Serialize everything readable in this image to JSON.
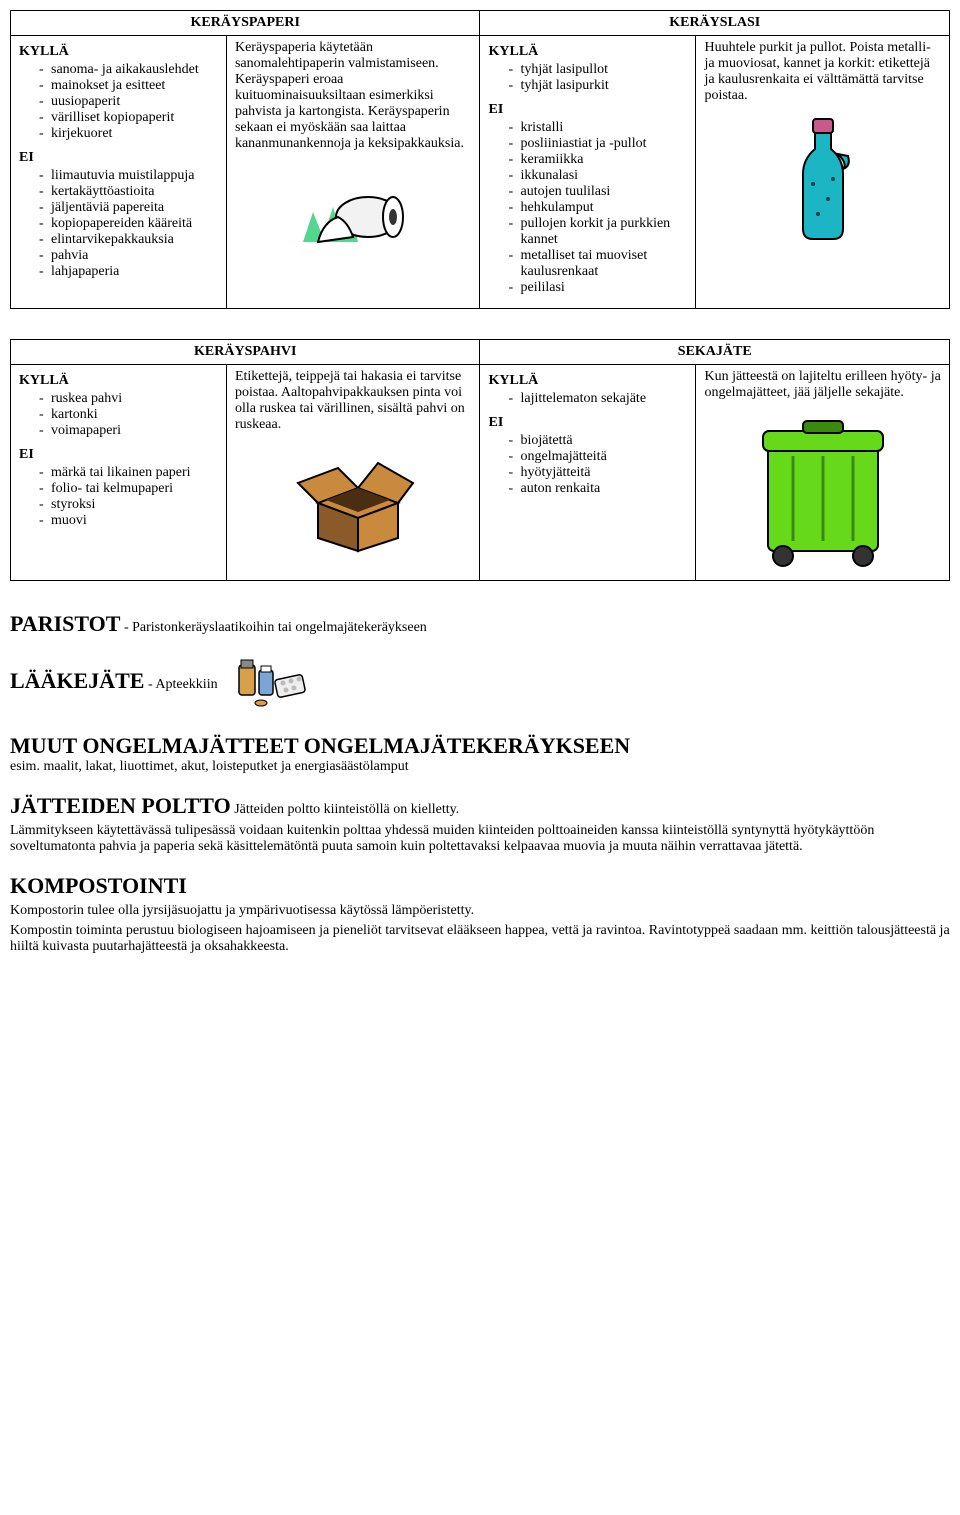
{
  "table1": {
    "h1": "KERÄYSPAPERI",
    "h2": "KERÄYSLASI",
    "paper": {
      "yes_label": "KYLLÄ",
      "yes": [
        "sanoma- ja aikakauslehdet",
        "mainokset ja esitteet",
        "uusiopaperit",
        "värilliset kopiopaperit",
        "kirjekuoret"
      ],
      "no_label": "EI",
      "no": [
        "liimautuvia muistilappuja",
        "kertakäyttöastioita",
        "jäljentäviä papereita",
        "kopiopapereiden kääreitä",
        "elintarvikepakkauksia",
        "pahvia",
        "lahjapaperia"
      ],
      "desc": "Keräyspaperia käytetään sanomalehtipaperin valmistamiseen. Keräyspaperi eroaa kuituominaisuuksiltaan esimerkiksi pahvista ja kartongista. Keräyspaperin sekaan ei myöskään saa laittaa kananmunankennoja ja keksipakkauksia."
    },
    "glass": {
      "yes_label": "KYLLÄ",
      "yes": [
        "tyhjät lasipullot",
        "tyhjät lasipurkit"
      ],
      "no_label": "EI",
      "no": [
        "kristalli",
        "posliiniastiat ja -pullot",
        "keramiikka",
        "ikkunalasi",
        "autojen tuulilasi",
        "hehkulamput",
        "pullojen korkit ja purkkien kannet",
        "metalliset tai muoviset kaulusrenkaat",
        "peililasi"
      ],
      "desc": "Huuhtele purkit ja pullot. Poista metalli- ja muoviosat, kannet ja korkit: etikettejä ja kaulusrenkaita ei välttämättä tarvitse poistaa."
    }
  },
  "table2": {
    "h1": "KERÄYSPAHVI",
    "h2": "SEKAJÄTE",
    "card": {
      "yes_label": "KYLLÄ",
      "yes": [
        "ruskea pahvi",
        "kartonki",
        "voimapaperi"
      ],
      "no_label": "EI",
      "no": [
        "märkä tai likainen paperi",
        "folio- tai kelmupaperi",
        "styroksi",
        "muovi"
      ],
      "desc": "Etikettejä, teippejä tai hakasia ei tarvitse poistaa. Aaltopahvipakkauksen pinta voi olla ruskea tai värillinen, sisältä pahvi on ruskeaa."
    },
    "mixed": {
      "yes_label": "KYLLÄ",
      "yes": [
        "lajittelematon sekajäte"
      ],
      "no_label": "EI",
      "no": [
        "biojätettä",
        "ongelmajätteitä",
        "hyötyjätteitä",
        "auton renkaita"
      ],
      "desc": "Kun jätteestä on lajiteltu erilleen hyöty- ja ongelmajätteet, jää jäljelle sekajäte."
    }
  },
  "sections": {
    "paristot_t": "PARISTOT",
    "paristot_s": " - Paristonkeräyslaatikoihin tai ongelmajätekeräykseen",
    "laake_t": "LÄÄKEJÄTE",
    "laake_s": " - Apteekkiin",
    "muut_t": "MUUT ONGELMAJÄTTEET ONGELMAJÄTEKERÄYKSEEN",
    "muut_s": " esim. maalit, lakat, liuottimet, akut, loisteputket ja energiasäästölamput",
    "poltto_t": "JÄTTEIDEN POLTTO",
    "poltto_s": " Jätteiden poltto kiinteistöllä on kielletty.",
    "poltto_p": "Lämmitykseen käytettävässä tulipesässä voidaan kuitenkin polttaa yhdessä muiden kiinteiden polttoaineiden kanssa kiinteistöllä syntynyttä hyötykäyttöön soveltumatonta pahvia ja paperia sekä käsittelemätöntä puuta samoin kuin poltettavaksi kelpaavaa muovia ja muuta näihin verrattavaa jätettä.",
    "komp_t": "KOMPOSTOINTI",
    "komp_p1": "Kompostorin tulee olla jyrsijäsuojattu ja ympärivuotisessa käytössä lämpöeristetty.",
    "komp_p2": "Kompostin toiminta perustuu biologiseen hajoamiseen ja pieneliöt tarvitsevat elääkseen happea, vettä ja ravintoa. Ravintotyppeä saadaan mm. keittiön talousjätteestä ja hiiltä kuivasta puutarhajätteestä ja oksahakkeesta."
  },
  "icons": {
    "paper_roll": {
      "fill": "#f2f2f2",
      "accent": "#55d68f"
    },
    "bottle": {
      "fill": "#1cb5c4",
      "cap": "#c75a8a"
    },
    "box": {
      "fill": "#c98a3d",
      "dark": "#8a5a28"
    },
    "bin": {
      "fill": "#66d91a",
      "dark": "#3a8a0f"
    },
    "meds": {
      "a": "#d9a04a",
      "b": "#7aa5d6",
      "c": "#eeeeee"
    }
  }
}
